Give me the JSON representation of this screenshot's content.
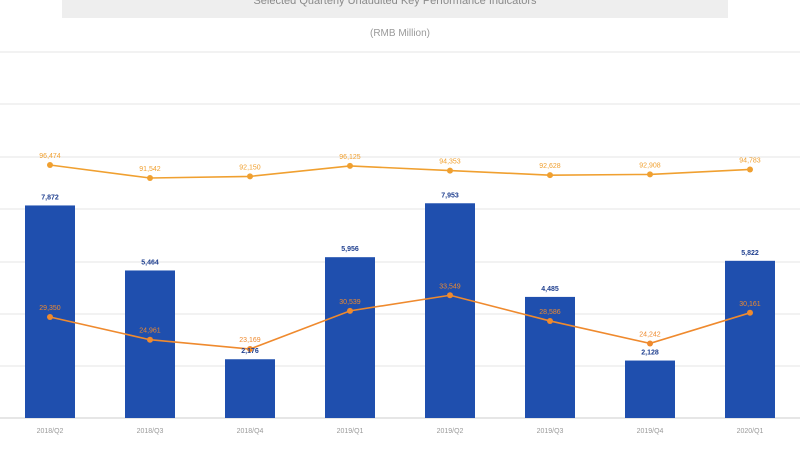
{
  "chart_data": {
    "type": "bar",
    "title": "Selected Quarterly Unaudited Key Performance Indicators",
    "subtitle": "(RMB Million)",
    "categories": [
      "2018/Q2",
      "2018/Q3",
      "2018/Q4",
      "2019/Q1",
      "2019/Q2",
      "2019/Q3",
      "2019/Q4",
      "2020/Q1"
    ],
    "bar_series": {
      "values": [
        7872,
        5464,
        2176,
        5956,
        7953,
        4485,
        2128,
        5822
      ],
      "labels": [
        "7,872",
        "5,464",
        "2,176",
        "5,956",
        "7,953",
        "4,485",
        "2,128",
        "5,822"
      ],
      "color": "#1f4fae"
    },
    "line_series": [
      {
        "values": [
          96474,
          91542,
          92150,
          96125,
          94353,
          92628,
          92908,
          94783
        ],
        "labels": [
          "96,474",
          "91,542",
          "92,150",
          "96,125",
          "94,353",
          "92,628",
          "92,908",
          "94,783"
        ],
        "color": "#f0a030"
      },
      {
        "values": [
          29350,
          24961,
          23169,
          30539,
          33549,
          28586,
          24242,
          30161
        ],
        "labels": [
          "29,350",
          "24,961",
          "23,169",
          "30,539",
          "33,549",
          "28,586",
          "24,242",
          "30,161"
        ],
        "color": "#ef8a2e"
      }
    ],
    "grid": true,
    "legend": "bottom"
  }
}
